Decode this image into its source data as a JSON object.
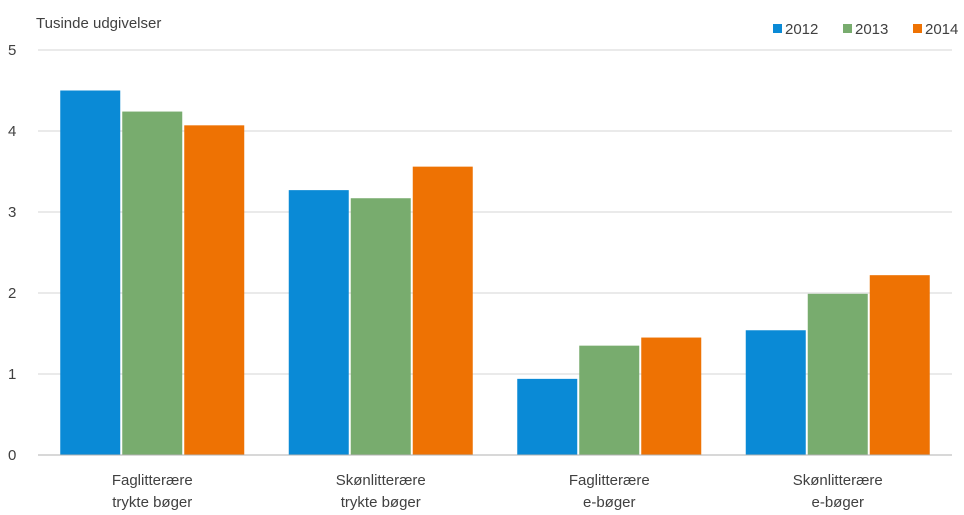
{
  "chart_data": {
    "type": "bar",
    "ylabel": "Tusinde udgivelser",
    "ylim": [
      0,
      5
    ],
    "yticks": [
      0,
      1,
      2,
      3,
      4,
      5
    ],
    "categories": [
      [
        "Faglitterære",
        "trykte bøger"
      ],
      [
        "Skønlitterære",
        "trykte bøger"
      ],
      [
        "Faglitterære",
        "e-bøger"
      ],
      [
        "Skønlitterære",
        "e-bøger"
      ]
    ],
    "series": [
      {
        "name": "2012",
        "color": "#0a8ad6",
        "values": [
          4.5,
          3.27,
          0.94,
          1.54
        ]
      },
      {
        "name": "2013",
        "color": "#78ac6e",
        "values": [
          4.24,
          3.17,
          1.35,
          1.99
        ]
      },
      {
        "name": "2014",
        "color": "#ee7203",
        "values": [
          4.07,
          3.56,
          1.45,
          2.22
        ]
      }
    ],
    "grid": true,
    "legend": "top-right"
  }
}
